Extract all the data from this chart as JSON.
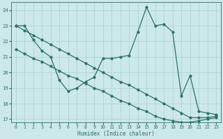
{
  "xlabel": "Humidex (Indice chaleur)",
  "bg_color": "#cce8e8",
  "grid_color": "#aad0d0",
  "line_color": "#2d7068",
  "xlim": [
    -0.5,
    23.5
  ],
  "ylim": [
    16.8,
    24.5
  ],
  "yticks": [
    17,
    18,
    19,
    20,
    21,
    22,
    23,
    24
  ],
  "xticks": [
    0,
    1,
    2,
    3,
    4,
    5,
    6,
    7,
    8,
    9,
    10,
    11,
    12,
    13,
    14,
    15,
    16,
    17,
    18,
    19,
    20,
    21,
    22,
    23
  ],
  "line1_x": [
    0,
    1,
    2,
    3,
    4,
    5,
    6,
    7,
    8,
    9,
    10,
    11,
    12,
    13,
    14,
    15,
    16,
    17,
    18,
    19,
    20,
    21,
    22,
    23
  ],
  "line1_y": [
    23.0,
    23.0,
    22.1,
    21.4,
    21.0,
    19.5,
    18.8,
    19.0,
    19.4,
    19.7,
    20.9,
    20.9,
    21.0,
    21.1,
    22.6,
    24.2,
    23.0,
    23.1,
    22.6,
    18.5,
    19.8,
    17.5,
    17.4,
    17.3
  ],
  "line2_x": [
    0,
    1,
    2,
    3,
    4,
    5,
    6,
    7,
    8,
    9,
    10,
    11,
    12,
    13,
    14,
    15,
    16,
    17,
    18,
    19,
    20,
    21,
    22,
    23
  ],
  "line2_y": [
    23.0,
    22.7,
    22.4,
    22.1,
    21.8,
    21.5,
    21.2,
    20.9,
    20.6,
    20.3,
    20.0,
    19.7,
    19.4,
    19.2,
    18.9,
    18.6,
    18.3,
    18.0,
    17.7,
    17.4,
    17.1,
    17.1,
    17.1,
    17.2
  ],
  "line3_x": [
    0,
    1,
    2,
    3,
    4,
    5,
    6,
    7,
    8,
    9,
    10,
    11,
    12,
    13,
    14,
    15,
    16,
    17,
    18,
    19,
    20,
    21,
    22,
    23
  ],
  "line3_y": [
    21.5,
    21.2,
    20.9,
    20.7,
    20.4,
    20.1,
    19.8,
    19.6,
    19.3,
    19.0,
    18.8,
    18.5,
    18.2,
    18.0,
    17.7,
    17.5,
    17.2,
    17.0,
    16.9,
    16.8,
    16.8,
    16.9,
    17.0,
    17.1
  ]
}
